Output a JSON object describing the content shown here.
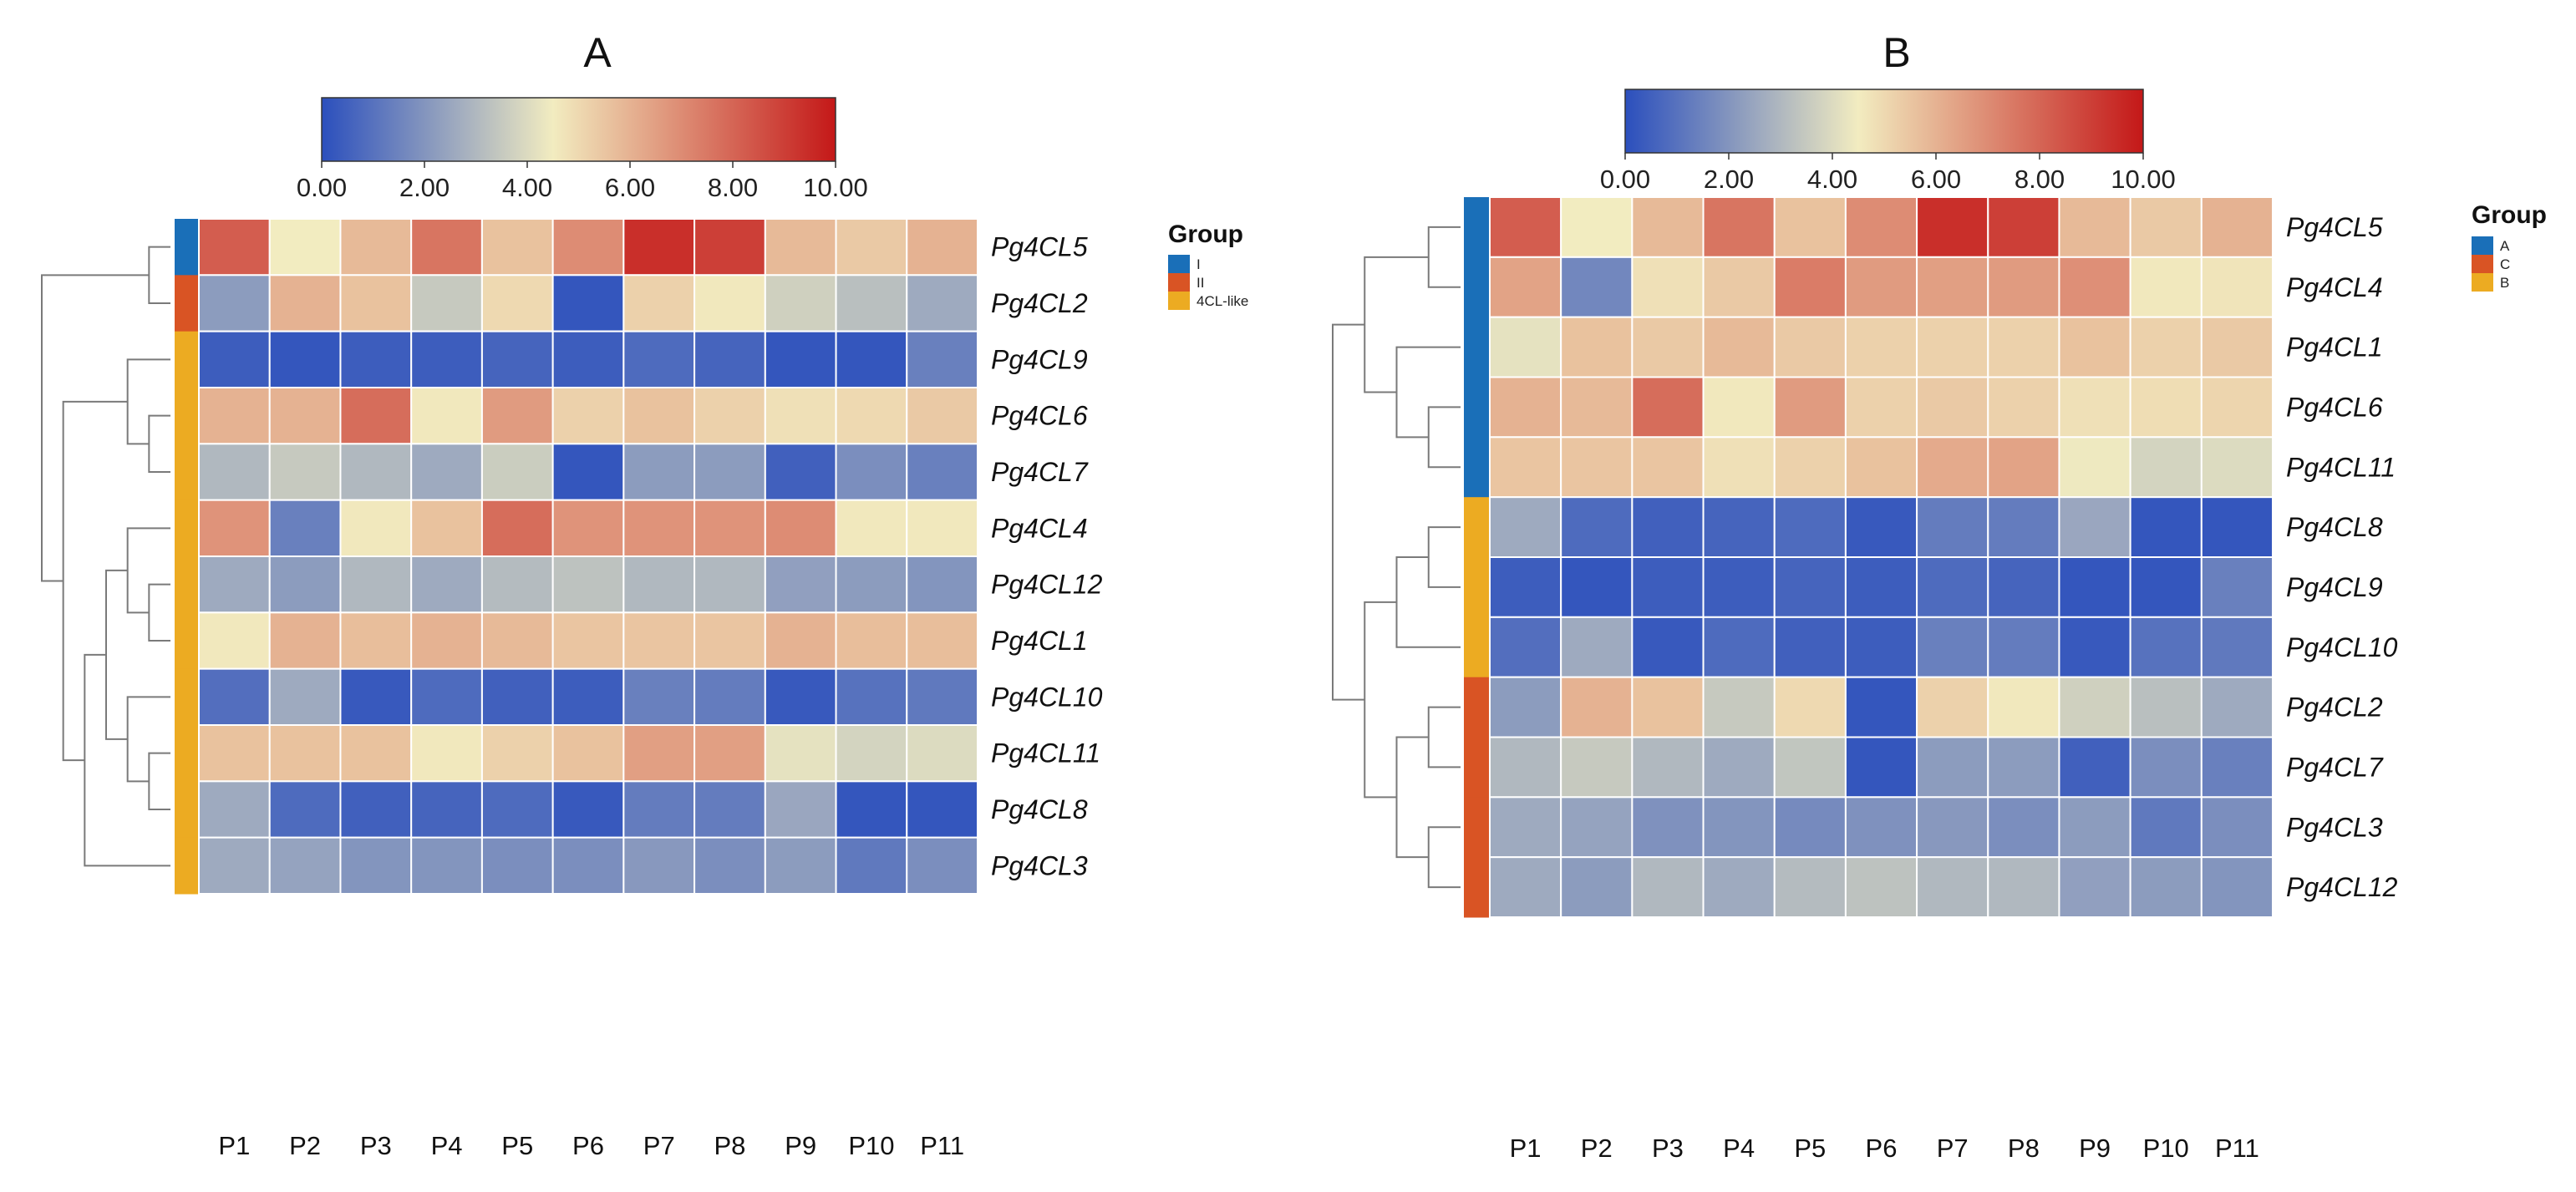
{
  "colorscale": {
    "stops": [
      "#2b4fbd",
      "#f2ecc0",
      "#c41818"
    ],
    "min": 0,
    "mid": 4.5,
    "max": 10,
    "tick_labels": [
      "0.00",
      "2.00",
      "4.00",
      "6.00",
      "8.00",
      "10.00"
    ]
  },
  "chart_data": [
    {
      "type": "heatmap",
      "title": "A",
      "columns": [
        "P1",
        "P2",
        "P3",
        "P4",
        "P5",
        "P6",
        "P7",
        "P8",
        "P9",
        "P10",
        "P11"
      ],
      "rows": [
        "Pg4CL5",
        "Pg4CL2",
        "Pg4CL9",
        "Pg4CL6",
        "Pg4CL7",
        "Pg4CL4",
        "Pg4CL12",
        "Pg4CL1",
        "Pg4CL10",
        "Pg4CL11",
        "Pg4CL8",
        "Pg4CL3"
      ],
      "values": [
        [
          8.2,
          4.5,
          5.8,
          7.6,
          5.6,
          7.0,
          9.4,
          9.0,
          5.8,
          5.4,
          6.0
        ],
        [
          2.2,
          6.0,
          5.6,
          3.5,
          5.0,
          0.2,
          5.2,
          4.6,
          3.7,
          3.2,
          2.6
        ],
        [
          0.4,
          0.2,
          0.4,
          0.4,
          0.6,
          0.4,
          0.8,
          0.6,
          0.2,
          0.2,
          1.4
        ],
        [
          6.0,
          6.0,
          7.8,
          4.6,
          6.6,
          5.2,
          5.6,
          5.2,
          4.8,
          5.0,
          5.4
        ],
        [
          3.0,
          3.5,
          3.0,
          2.6,
          3.6,
          0.2,
          2.2,
          2.2,
          0.5,
          1.8,
          1.4
        ],
        [
          6.8,
          1.4,
          4.6,
          5.6,
          7.8,
          6.8,
          6.8,
          6.8,
          7.0,
          4.6,
          4.6
        ],
        [
          2.6,
          2.2,
          3.0,
          2.6,
          3.1,
          3.3,
          3.0,
          3.0,
          2.3,
          2.2,
          2.0
        ],
        [
          4.6,
          6.0,
          5.7,
          6.0,
          5.8,
          5.5,
          5.5,
          5.5,
          6.0,
          5.7,
          5.7
        ],
        [
          0.9,
          2.6,
          0.3,
          0.8,
          0.5,
          0.4,
          1.4,
          1.3,
          0.3,
          1.0,
          1.2
        ],
        [
          5.6,
          5.6,
          5.6,
          4.6,
          5.2,
          5.6,
          6.5,
          6.5,
          4.2,
          3.8,
          4.0
        ],
        [
          2.6,
          0.8,
          0.5,
          0.6,
          0.8,
          0.3,
          1.3,
          1.3,
          2.5,
          0.2,
          0.2
        ],
        [
          2.6,
          2.4,
          2.0,
          2.0,
          1.8,
          1.8,
          2.1,
          1.8,
          2.2,
          1.2,
          1.8
        ]
      ],
      "legend_title": "Group",
      "legend": [
        {
          "name": "I",
          "color": "#1a6fb8"
        },
        {
          "name": "II",
          "color": "#d95424"
        },
        {
          "name": "4CL-like",
          "color": "#ecab22"
        }
      ],
      "row_groups": [
        "I",
        "II",
        "4CL-like",
        "4CL-like",
        "4CL-like",
        "4CL-like",
        "4CL-like",
        "4CL-like",
        "4CL-like",
        "4CL-like",
        "4CL-like",
        "4CL-like"
      ]
    },
    {
      "type": "heatmap",
      "title": "B",
      "columns": [
        "P1",
        "P2",
        "P3",
        "P4",
        "P5",
        "P6",
        "P7",
        "P8",
        "P9",
        "P10",
        "P11"
      ],
      "rows": [
        "Pg4CL5",
        "Pg4CL4",
        "Pg4CL1",
        "Pg4CL6",
        "Pg4CL11",
        "Pg4CL8",
        "Pg4CL9",
        "Pg4CL10",
        "Pg4CL2",
        "Pg4CL7",
        "Pg4CL3",
        "Pg4CL12"
      ],
      "values": [
        [
          8.2,
          4.5,
          5.8,
          7.6,
          5.6,
          7.0,
          9.4,
          9.0,
          5.8,
          5.4,
          6.0
        ],
        [
          6.4,
          1.6,
          4.8,
          5.4,
          7.4,
          6.6,
          6.5,
          6.6,
          6.9,
          4.6,
          4.7
        ],
        [
          4.2,
          5.6,
          5.4,
          5.8,
          5.4,
          5.2,
          5.2,
          5.2,
          5.6,
          5.2,
          5.4
        ],
        [
          6.0,
          5.8,
          7.8,
          4.6,
          6.6,
          5.2,
          5.4,
          5.2,
          4.8,
          4.9,
          5.1
        ],
        [
          5.5,
          5.5,
          5.5,
          4.8,
          5.2,
          5.6,
          6.2,
          6.4,
          4.4,
          3.8,
          4.0
        ],
        [
          2.6,
          0.8,
          0.5,
          0.6,
          0.8,
          0.3,
          1.3,
          1.3,
          2.5,
          0.2,
          0.2
        ],
        [
          0.4,
          0.2,
          0.4,
          0.4,
          0.6,
          0.4,
          0.8,
          0.6,
          0.2,
          0.2,
          1.4
        ],
        [
          0.9,
          2.6,
          0.3,
          0.8,
          0.5,
          0.4,
          1.4,
          1.3,
          0.3,
          1.0,
          1.2
        ],
        [
          2.2,
          6.0,
          5.6,
          3.5,
          5.0,
          0.2,
          5.2,
          4.6,
          3.7,
          3.2,
          2.6
        ],
        [
          3.0,
          3.5,
          3.0,
          2.6,
          3.4,
          0.2,
          2.2,
          2.2,
          0.5,
          1.8,
          1.4
        ],
        [
          2.6,
          2.4,
          1.9,
          2.0,
          1.7,
          1.9,
          2.1,
          1.8,
          2.2,
          1.2,
          1.8
        ],
        [
          2.6,
          2.2,
          3.0,
          2.6,
          3.1,
          3.3,
          3.0,
          3.0,
          2.3,
          2.2,
          2.0
        ]
      ],
      "legend_title": "Group",
      "legend": [
        {
          "name": "A",
          "color": "#1a6fb8"
        },
        {
          "name": "C",
          "color": "#d95424"
        },
        {
          "name": "B",
          "color": "#ecab22"
        }
      ],
      "row_groups": [
        "A",
        "A",
        "A",
        "A",
        "A",
        "B",
        "B",
        "B",
        "C",
        "C",
        "C",
        "C"
      ]
    }
  ]
}
